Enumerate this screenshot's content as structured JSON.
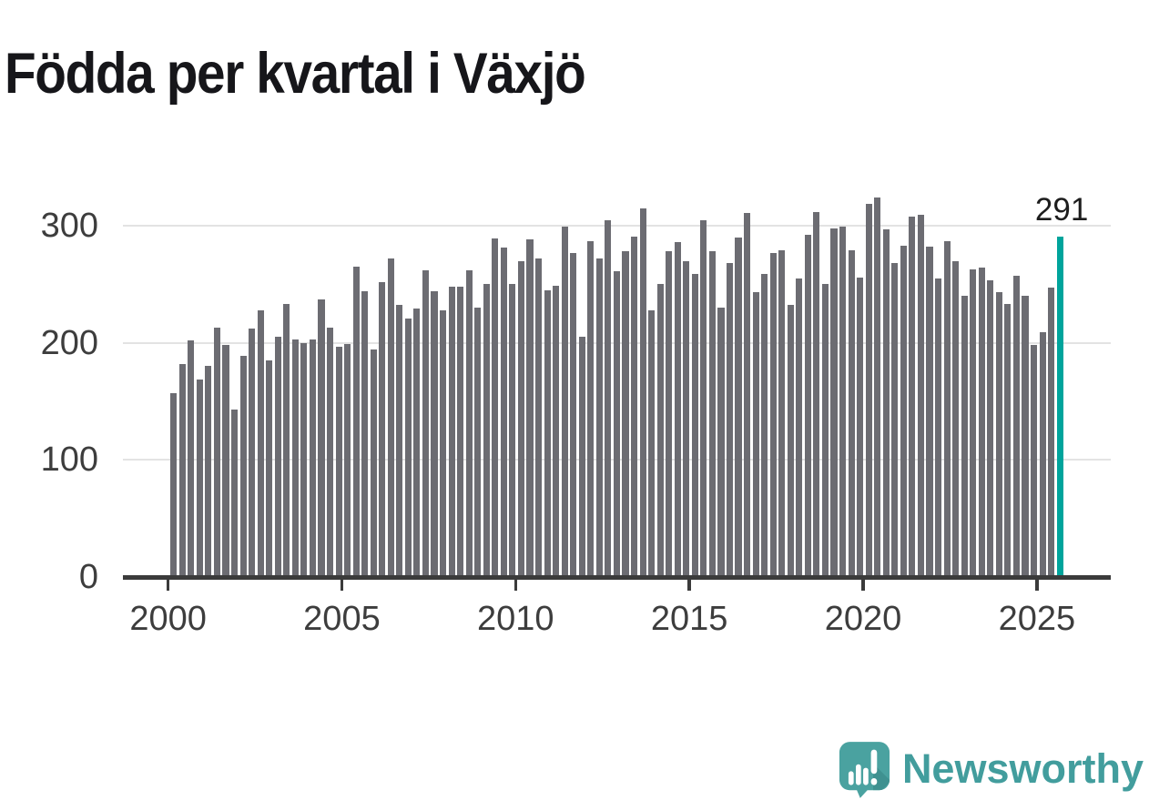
{
  "title": "Födda per kvartal i Växjö",
  "annotation": "291",
  "y_axis": {
    "ticks": [
      "0",
      "100",
      "200",
      "300"
    ]
  },
  "x_axis": {
    "ticks": [
      "2000",
      "2005",
      "2010",
      "2015",
      "2020",
      "2025"
    ]
  },
  "branding": {
    "name": "Newsworthy",
    "icon": "newsworthy-speech-bubble-chart-icon"
  },
  "colors": {
    "bar": "#6c6c72",
    "highlight": "#00a49c",
    "axis": "#3b3b3b",
    "grid": "#e3e3e3",
    "tick_label": "#3d3d3d",
    "title": "#16161a",
    "annotation": "#1d1d1d",
    "logo": "#429d9d"
  },
  "chart_data": {
    "type": "bar",
    "title": "Födda per kvartal i Växjö",
    "frequency": "quarterly",
    "x_start_quarter": "2000Q1",
    "x_end_quarter": "2025Q3",
    "ylim": [
      0,
      340
    ],
    "gridlines": [
      100,
      200,
      300
    ],
    "grid": true,
    "legend": false,
    "x_tick_years": [
      2000,
      2005,
      2010,
      2015,
      2020,
      2025
    ],
    "highlight_last_bar": true,
    "highlight_last_value": 291,
    "values": [
      157,
      182,
      202,
      169,
      180,
      213,
      198,
      143,
      189,
      212,
      228,
      185,
      205,
      233,
      203,
      200,
      203,
      237,
      213,
      197,
      199,
      265,
      244,
      194,
      252,
      272,
      232,
      221,
      229,
      262,
      244,
      228,
      248,
      248,
      262,
      230,
      250,
      289,
      281,
      250,
      270,
      288,
      272,
      245,
      249,
      299,
      277,
      205,
      287,
      272,
      305,
      261,
      278,
      291,
      315,
      228,
      250,
      278,
      286,
      270,
      259,
      305,
      278,
      230,
      268,
      290,
      311,
      243,
      259,
      277,
      279,
      232,
      255,
      292,
      312,
      250,
      298,
      299,
      279,
      256,
      319,
      324,
      297,
      268,
      283,
      308,
      309,
      282,
      255,
      287,
      270,
      240,
      263,
      264,
      253,
      243,
      233,
      257,
      240,
      198,
      209,
      247,
      291
    ]
  }
}
